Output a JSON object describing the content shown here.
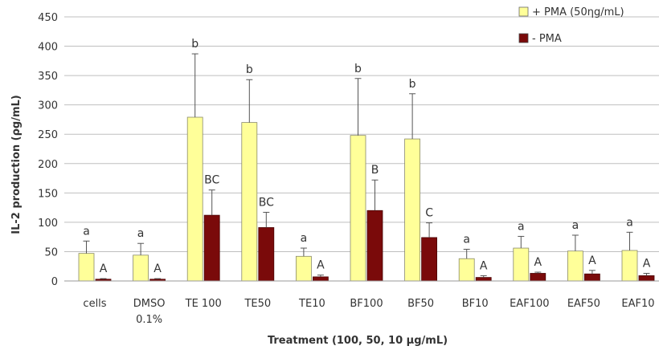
{
  "chart_data": {
    "type": "bar",
    "xlabel": "Treatment (100, 50, 10 μg/mL)",
    "ylabel": "IL-2 production (ρg/mL)",
    "ylim": [
      0,
      450
    ],
    "yticks": [
      0,
      50,
      100,
      150,
      200,
      250,
      300,
      350,
      400,
      450
    ],
    "grid": true,
    "legend_position": "top-right",
    "categories": [
      [
        "cells"
      ],
      [
        "DMSO",
        "0.1%"
      ],
      [
        "TE 100"
      ],
      [
        "TE50"
      ],
      [
        "TE10"
      ],
      [
        "BF100"
      ],
      [
        "BF50"
      ],
      [
        "BF10"
      ],
      [
        "EAF100"
      ],
      [
        "EAF50"
      ],
      [
        "EAF10"
      ]
    ],
    "series": [
      {
        "name": "+ PMA (50ηg/mL)",
        "color": "#ffff99",
        "values": [
          47,
          44,
          279,
          270,
          42,
          248,
          242,
          38,
          56,
          51,
          52
        ],
        "errors": [
          21,
          20,
          108,
          73,
          14,
          97,
          77,
          16,
          20,
          27,
          31
        ],
        "labels": [
          "a",
          "a",
          "b",
          "b",
          "a",
          "b",
          "b",
          "a",
          "a",
          "a",
          "a"
        ]
      },
      {
        "name": "- PMA",
        "color": "#7a0a0a",
        "values": [
          3,
          3,
          112,
          91,
          7,
          120,
          74,
          6,
          13,
          12,
          9
        ],
        "errors": [
          1,
          1,
          43,
          26,
          3,
          52,
          25,
          3,
          2,
          6,
          4
        ],
        "labels": [
          "A",
          "A",
          "BC",
          "BC",
          "A",
          "B",
          "C",
          "A",
          "A",
          "A",
          "A"
        ]
      }
    ]
  }
}
